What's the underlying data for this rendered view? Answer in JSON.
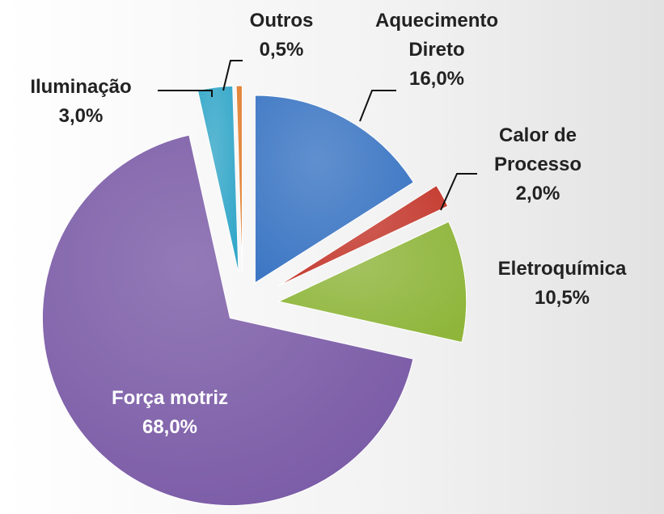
{
  "chart_data": {
    "type": "pie",
    "categories": [
      "Aquecimento Direto",
      "Calor de Processo",
      "Eletroquímica",
      "Força motriz",
      "Iluminação",
      "Outros"
    ],
    "values": [
      16.0,
      2.0,
      10.5,
      68.0,
      3.0,
      0.5
    ],
    "value_labels": [
      "16,0%",
      "2,0%",
      "10,5%",
      "68,0%",
      "3,0%",
      "0,5%"
    ],
    "colors": [
      "#3b76c4",
      "#c53a2f",
      "#8fb63b",
      "#7a5aa6",
      "#33a7c9",
      "#e07a28"
    ]
  }
}
